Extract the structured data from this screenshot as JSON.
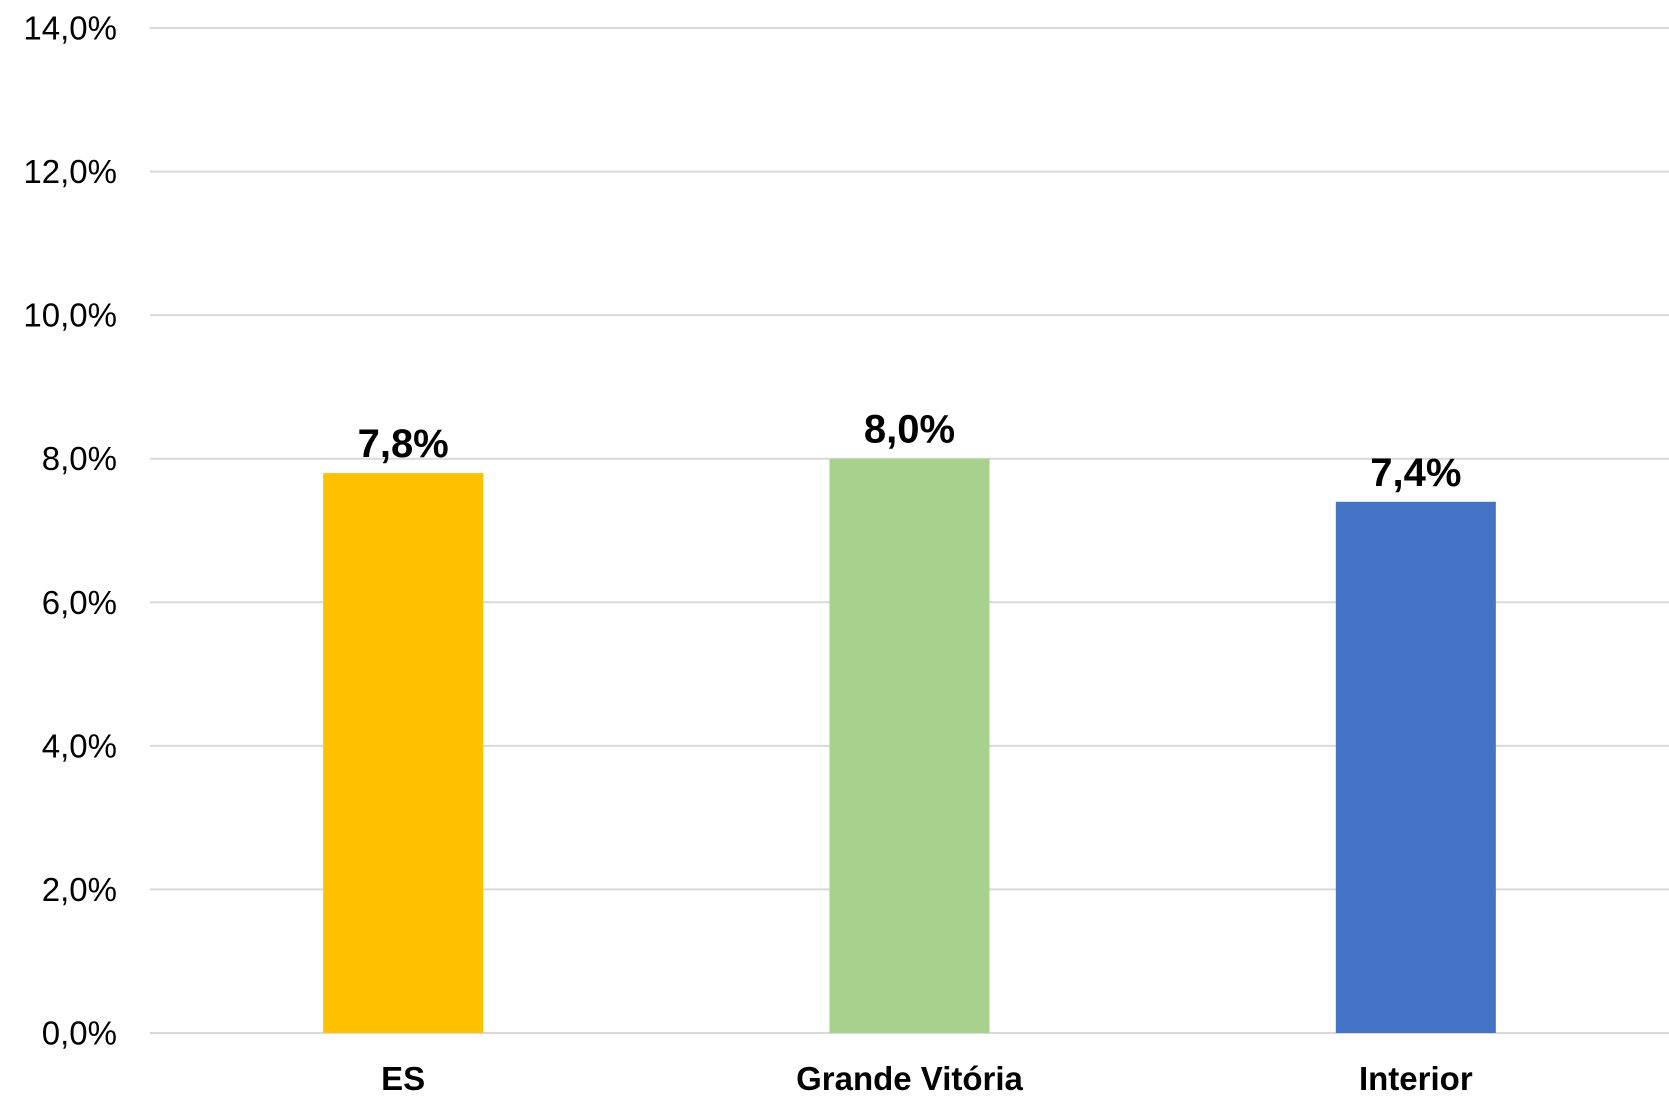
{
  "chart_data": {
    "type": "bar",
    "categories": [
      "ES",
      "Grande Vitória",
      "Interior"
    ],
    "values": [
      7.8,
      8.0,
      7.4
    ],
    "data_labels": [
      "7,8%",
      "8,0%",
      "7,4%"
    ],
    "bar_colors": [
      "#FFC000",
      "#A9D18E",
      "#4472C4"
    ],
    "y_ticks": [
      0,
      2,
      4,
      6,
      8,
      10,
      12,
      14
    ],
    "y_tick_labels": [
      "0,0%",
      "2,0%",
      "4,0%",
      "6,0%",
      "8,0%",
      "10,0%",
      "12,0%",
      "14,0%"
    ],
    "ylim": [
      0,
      14
    ],
    "grid": true,
    "legend": "none"
  }
}
